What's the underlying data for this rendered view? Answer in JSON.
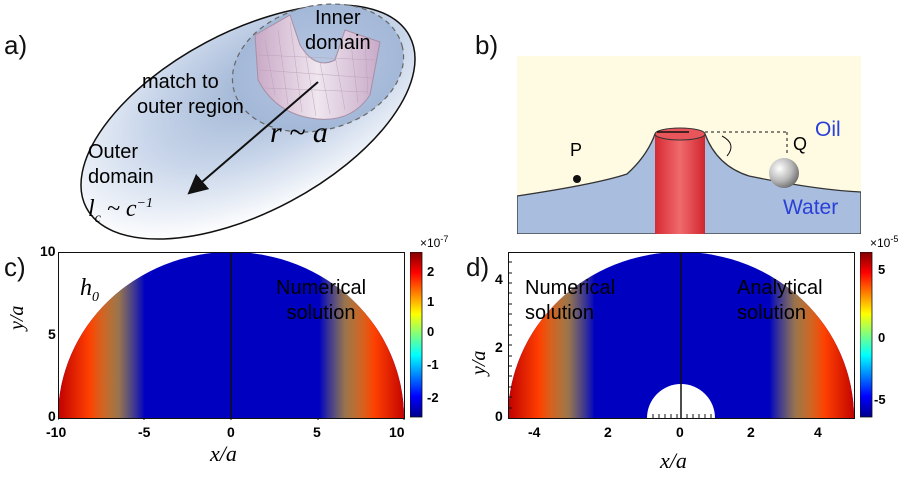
{
  "panels": {
    "a": {
      "label": "a)",
      "inner_domain": [
        "Inner",
        "domain"
      ],
      "match": [
        "match to",
        "outer region"
      ],
      "r_a": "r ~ a",
      "outer_domain": [
        "Outer",
        "domain"
      ],
      "lc": "l",
      "lc_sub": "c",
      "lc_rhs": "~ c",
      "lc_sup": "−1"
    },
    "b": {
      "label": "b)",
      "oil": "Oil",
      "water": "Water",
      "p": "P",
      "q": "Q",
      "colors": {
        "oil_bg": "#fffbe3",
        "water": "#a9bede",
        "cylinder": "#e23a3f",
        "text_blue": "#2a40d6"
      }
    },
    "c": {
      "label": "c)",
      "h0": "h",
      "h0_sub": "0",
      "numerical": [
        "Numerical",
        "solution"
      ],
      "ylabel": "y/a",
      "xlabel": "x/a",
      "xticks": [
        "-10",
        "-5",
        "0",
        "5",
        "10"
      ],
      "yticks": [
        "0",
        "5",
        "10"
      ],
      "colorbar_exp": "×10",
      "colorbar_exp_sup": "-7",
      "colorbar_ticks": [
        "2",
        "1",
        "0",
        "-1",
        "-2"
      ]
    },
    "d": {
      "label": "d)",
      "numerical": [
        "Numerical",
        "solution"
      ],
      "analytical": [
        "Analytical",
        "solution"
      ],
      "ylabel": "y/a",
      "xlabel": "x/a",
      "xticks": [
        "-4",
        "2",
        "0",
        "2",
        "4"
      ],
      "yticks": [
        "0",
        "2",
        "4"
      ],
      "colorbar_exp": "×10",
      "colorbar_exp_sup": "-5",
      "colorbar_ticks": [
        "5",
        "0",
        "-5"
      ]
    }
  }
}
